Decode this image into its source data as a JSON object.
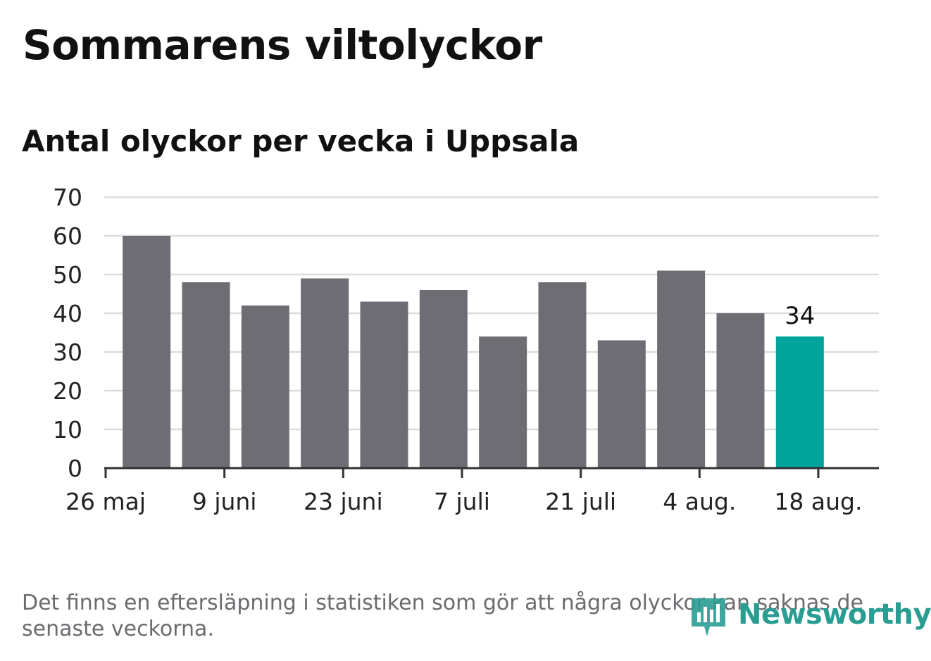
{
  "title": "Sommarens viltolyckor",
  "subtitle": "Antal olyckor per vecka i Uppsala",
  "footnote": "Det finns en eftersläpning i statistiken som gör att några olyckor kan saknas de senaste veckorna.",
  "brand": {
    "name": "Newsworthy",
    "icon": "chart-speech-bubble-icon",
    "color": "#2a9d93"
  },
  "colors": {
    "bar": "#6e6d74",
    "highlight": "#00a49a",
    "grid": "#dcdcdc",
    "axis": "#333333"
  },
  "chart_data": {
    "type": "bar",
    "title": "Antal olyckor per vecka i Uppsala",
    "x_tick_labels": [
      "26 maj",
      "9 juni",
      "23 juni",
      "7 juli",
      "21 juli",
      "4 aug.",
      "18 aug."
    ],
    "values": [
      60,
      48,
      42,
      49,
      43,
      46,
      34,
      48,
      33,
      51,
      40,
      34
    ],
    "highlight_index": 11,
    "annotations": [
      {
        "index": 11,
        "text": "34"
      }
    ],
    "ylim": [
      0,
      70
    ],
    "y_ticks": [
      0,
      10,
      20,
      30,
      40,
      50,
      60,
      70
    ],
    "grid": true,
    "xlabel": "",
    "ylabel": ""
  }
}
